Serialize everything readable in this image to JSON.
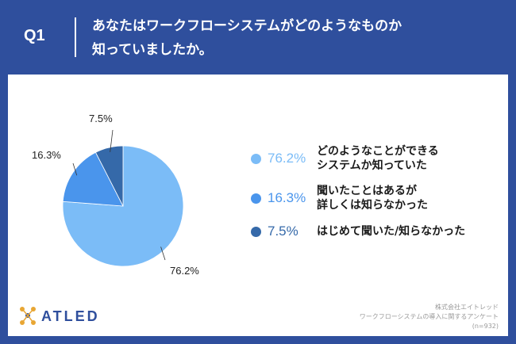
{
  "header": {
    "q_label": "Q1",
    "question_line1": "あなたはワークフローシステムがどのようなものか",
    "question_line2": "知っていましたか。"
  },
  "chart_data": {
    "type": "pie",
    "categories": [
      "どのようなことができるシステムか知っていた",
      "聞いたことはあるが詳しくは知らなかった",
      "はじめて聞いた/知らなかった"
    ],
    "values": [
      76.2,
      16.3,
      7.5
    ],
    "value_labels": [
      "76.2%",
      "16.3%",
      "7.5%"
    ],
    "colors": [
      "#7bbcf7",
      "#4a95ec",
      "#3569a9"
    ],
    "legend_placement": "right"
  },
  "legend": [
    {
      "value": "76.2%",
      "text": "どのようなことができる\nシステムか知っていた",
      "color": "#7bbcf7"
    },
    {
      "value": "16.3%",
      "text": "聞いたことはあるが\n詳しくは知らなかった",
      "color": "#4a95ec"
    },
    {
      "value": "7.5%",
      "text": "はじめて聞いた/知らなかった",
      "color": "#3569a9"
    }
  ],
  "logo": {
    "text": "ATLED"
  },
  "footer": {
    "company": "株式会社エイトレッド",
    "survey": "ワークフローシステムの導入に関するアンケート",
    "n": "(n=932)"
  },
  "colors": {
    "header_bg": "#2f4f9d",
    "panel_bg": "#ffffff",
    "logo_accent": "#e8a634"
  }
}
